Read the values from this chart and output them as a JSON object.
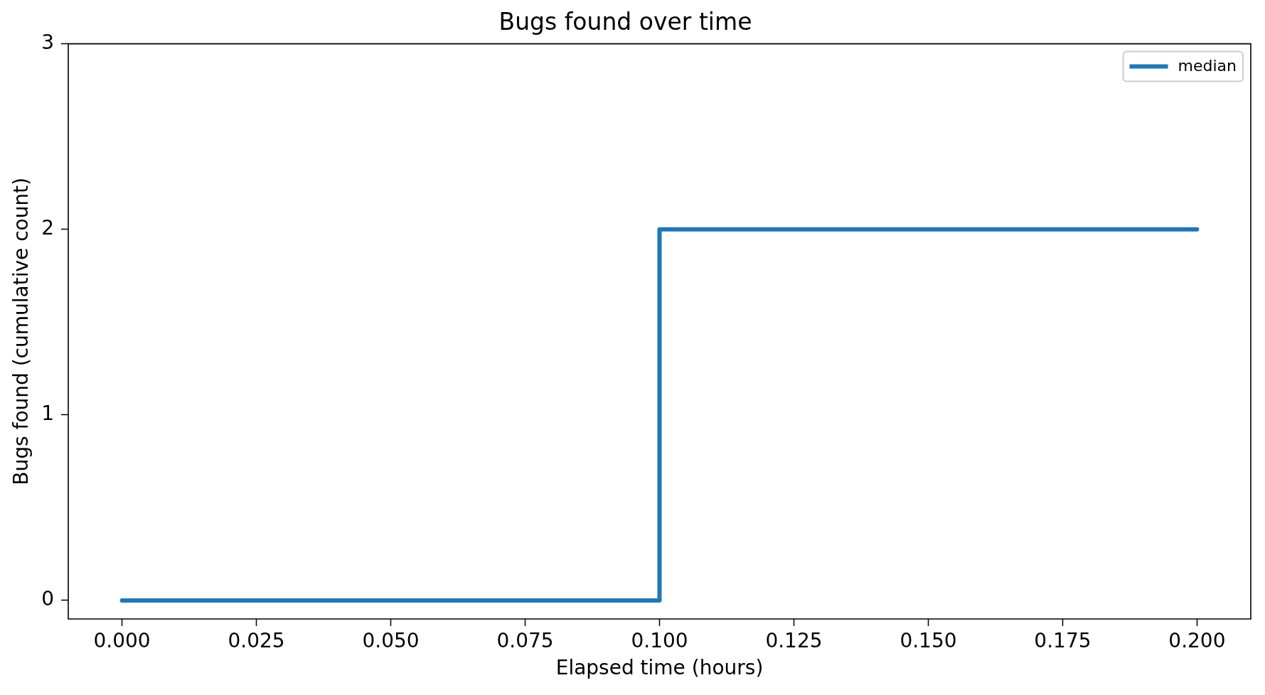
{
  "chart_data": {
    "type": "step",
    "title": "Bugs found over time",
    "xlabel": "Elapsed time (hours)",
    "ylabel": "Bugs found (cumulative count)",
    "x": [
      0,
      0.1,
      0.2
    ],
    "series": [
      {
        "name": "median",
        "color": "#1f77b4",
        "values": [
          0,
          2,
          2
        ]
      }
    ],
    "xlim": [
      -0.01,
      0.21
    ],
    "ylim": [
      -0.1,
      3
    ],
    "xticks": [
      {
        "value": 0,
        "label": "0.000"
      },
      {
        "value": 0.025,
        "label": "0.025"
      },
      {
        "value": 0.05,
        "label": "0.050"
      },
      {
        "value": 0.075,
        "label": "0.075"
      },
      {
        "value": 0.1,
        "label": "0.100"
      },
      {
        "value": 0.125,
        "label": "0.125"
      },
      {
        "value": 0.15,
        "label": "0.150"
      },
      {
        "value": 0.175,
        "label": "0.175"
      },
      {
        "value": 0.2,
        "label": "0.200"
      }
    ],
    "yticks": [
      0,
      1,
      2,
      3
    ],
    "grid": false,
    "legend": "top right",
    "marker": "none",
    "line_style": "solid"
  }
}
